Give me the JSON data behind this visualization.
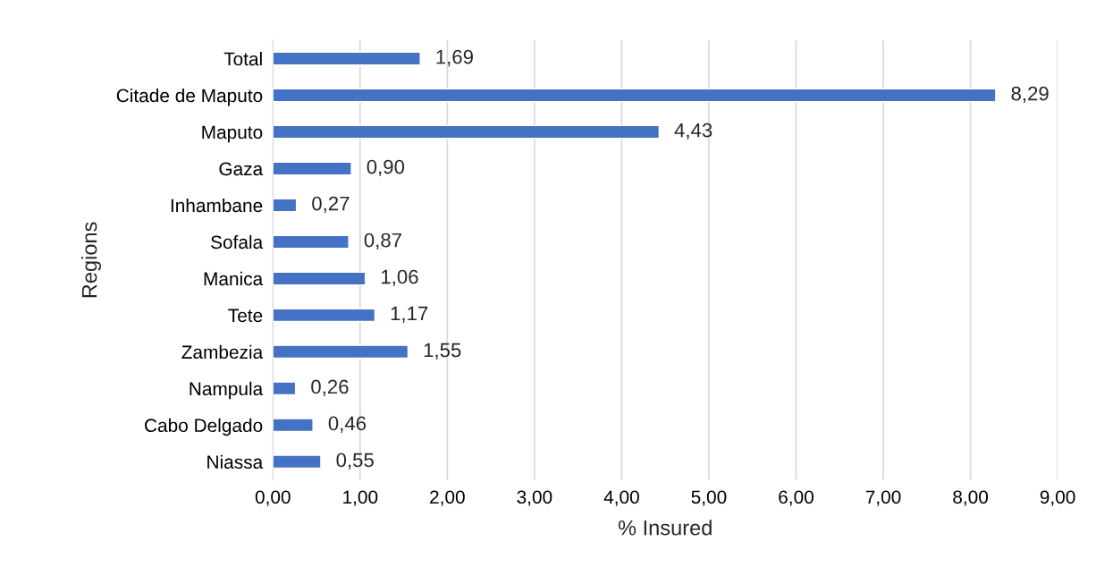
{
  "chart_data": {
    "type": "bar",
    "orientation": "horizontal",
    "xlabel": "% Insured",
    "ylabel": "Regions",
    "categories": [
      "Total",
      "Citade de Maputo",
      "Maputo",
      "Gaza",
      "Inhambane",
      "Sofala",
      "Manica",
      "Tete",
      "Zambezia",
      "Nampula",
      "Cabo Delgado",
      "Niassa"
    ],
    "values": [
      1.69,
      8.29,
      4.43,
      0.9,
      0.27,
      0.87,
      1.06,
      1.17,
      1.55,
      0.26,
      0.46,
      0.55
    ],
    "value_labels": [
      "1,69",
      "8,29",
      "4,43",
      "0,90",
      "0,27",
      "0,87",
      "1,06",
      "1,17",
      "1,55",
      "0,26",
      "0,46",
      "0,55"
    ],
    "color": "#4472c4",
    "xlim": [
      0,
      9
    ],
    "xticks": [
      {
        "value": 0,
        "label": "0,00"
      },
      {
        "value": 1,
        "label": "1,00"
      },
      {
        "value": 2,
        "label": "2,00"
      },
      {
        "value": 3,
        "label": "3,00"
      },
      {
        "value": 4,
        "label": "4,00"
      },
      {
        "value": 5,
        "label": "5,00"
      },
      {
        "value": 6,
        "label": "6,00"
      },
      {
        "value": 7,
        "label": "7,00"
      },
      {
        "value": 8,
        "label": "8,00"
      },
      {
        "value": 9,
        "label": "9,00"
      }
    ],
    "grid": "x",
    "legend": false
  }
}
